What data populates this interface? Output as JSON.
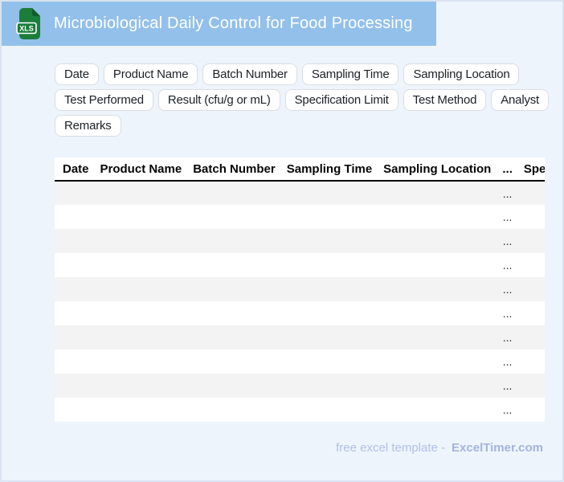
{
  "banner": {
    "title": "Microbiological Daily Control for Food Processing",
    "file_badge": "XLS"
  },
  "chips": {
    "items": [
      "Date",
      "Product Name",
      "Batch Number",
      "Sampling Time",
      "Sampling Location",
      "Test Performed",
      "Result (cfu/g or mL)",
      "Specification Limit",
      "Test Method",
      "Analyst",
      "Remarks"
    ]
  },
  "table": {
    "headers": [
      "Date",
      "Product Name",
      "Batch Number",
      "Sampling Time",
      "Sampling Location",
      "...",
      "Specification Limit"
    ],
    "cell_placeholder": "...",
    "row_count": 10
  },
  "footer": {
    "label": "free excel template -",
    "brand": "ExcelTimer.com"
  },
  "colors": {
    "banner_bg": "#92c0ea",
    "page_bg": "#edf4fc",
    "icon_green": "#1b7e3b",
    "icon_fold_green": "#0e5f2b",
    "stripe": "#f3f3f3",
    "footer_text": "#b2bfe8",
    "footer_brand": "#a4b3dd"
  }
}
